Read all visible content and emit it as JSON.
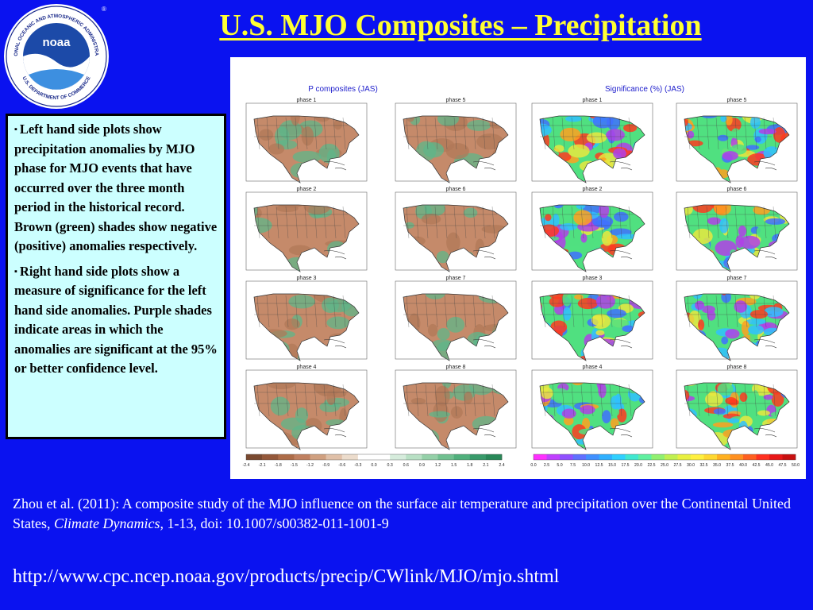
{
  "title": "U.S. MJO Composites – Precipitation",
  "logo": {
    "icon": "noaa-logo-icon",
    "wordmark": "noaa",
    "ring_top": "NATIONAL OCEANIC AND ATMOSPHERIC ADMINISTRATION",
    "ring_bottom": "U.S. DEPARTMENT OF COMMERCE"
  },
  "description": {
    "bullet_1": "Left hand side plots show precipitation anomalies by MJO phase for MJO events that have occurred over the three month period in the historical record. Brown (green) shades show negative (positive) anomalies respectively.",
    "bullet_2": "Right hand side plots show a measure of significance for the left hand side anomalies. Purple shades indicate areas in which the anomalies are significant at the 95% or better confidence level."
  },
  "figure": {
    "left_heading": "P composites (JAS)",
    "right_heading": "Significance (%) (JAS)",
    "left_phases": [
      "phase 1",
      "phase 5",
      "phase 2",
      "phase 6",
      "phase 3",
      "phase 7",
      "phase 4",
      "phase 8"
    ],
    "right_phases": [
      "phase 1",
      "phase 5",
      "phase 2",
      "phase 6",
      "phase 3",
      "phase 7",
      "phase 4",
      "phase 8"
    ],
    "left_colorbar_ticks": [
      "-2.4",
      "-2.1",
      "-1.8",
      "-1.5",
      "-1.2",
      "-0.9",
      "-0.6",
      "-0.3",
      "0.0",
      "0.3",
      "0.6",
      "0.9",
      "1.2",
      "1.5",
      "1.8",
      "2.1",
      "2.4"
    ],
    "right_colorbar_ticks": [
      "0.0",
      "2.5",
      "5.0",
      "7.5",
      "10.0",
      "12.5",
      "15.0",
      "17.5",
      "20.0",
      "22.5",
      "25.0",
      "27.5",
      "30.0",
      "32.5",
      "35.0",
      "37.5",
      "40.0",
      "42.5",
      "45.0",
      "47.5",
      "50.0"
    ],
    "colors": {
      "negative": "#c58a6a",
      "positive": "#5fb58a",
      "significance": [
        "#b040e8",
        "#4070ff",
        "#30c0ff",
        "#50e080",
        "#e8e840",
        "#ffa020",
        "#ff3a20"
      ]
    }
  },
  "citation": {
    "before_journal": "Zhou et al. (2011): A composite study of the MJO influence on the surface air temperature and precipitation over the Continental United States, ",
    "journal": "Climate Dynamics",
    "after_journal": ", 1-13, doi: 10.1007/s00382-011-1001-9"
  },
  "url": "http://www.cpc.ncep.noaa.gov/products/precip/CWlink/MJO/mjo.shtml"
}
